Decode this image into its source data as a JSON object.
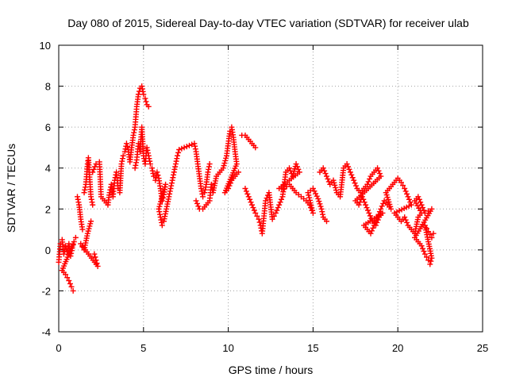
{
  "chart_data": {
    "type": "scatter",
    "title": "Day 080 of 2015, Sidereal Day-to-day VTEC variation (SDTVAR) for receiver ulab",
    "xlabel": "GPS time / hours",
    "ylabel": "SDTVAR / TECUs",
    "xlim": [
      0,
      25
    ],
    "ylim": [
      -4,
      10
    ],
    "xticks": [
      "0",
      "5",
      "10",
      "15",
      "20",
      "25"
    ],
    "yticks": [
      "-4",
      "-2",
      "0",
      "2",
      "4",
      "6",
      "8",
      "10"
    ],
    "grid": true,
    "marker": "+",
    "color": "#ff0000",
    "series": [
      {
        "name": "SDTVAR",
        "points": [
          [
            0.0,
            -0.6
          ],
          [
            0.1,
            0.3
          ],
          [
            0.2,
            0.5
          ],
          [
            0.3,
            -0.2
          ],
          [
            0.4,
            0.2
          ],
          [
            0.5,
            -0.1
          ],
          [
            0.6,
            0.3
          ],
          [
            0.7,
            -0.3
          ],
          [
            0.8,
            0.1
          ],
          [
            0.9,
            0.4
          ],
          [
            0.2,
            -1.0
          ],
          [
            0.4,
            -1.2
          ],
          [
            0.6,
            -1.5
          ],
          [
            0.75,
            -1.8
          ],
          [
            0.85,
            -2.0
          ],
          [
            1.0,
            0.6
          ],
          [
            1.1,
            2.6
          ],
          [
            1.2,
            2.2
          ],
          [
            1.3,
            1.5
          ],
          [
            1.4,
            1.0
          ],
          [
            1.5,
            2.8
          ],
          [
            1.6,
            3.2
          ],
          [
            1.7,
            4.2
          ],
          [
            1.75,
            4.5
          ],
          [
            1.8,
            3.8
          ],
          [
            1.9,
            2.6
          ],
          [
            2.0,
            2.2
          ],
          [
            2.1,
            -0.2
          ],
          [
            2.2,
            -0.5
          ],
          [
            2.3,
            -0.8
          ],
          [
            1.3,
            0.3
          ],
          [
            1.5,
            0.0
          ],
          [
            1.7,
            0.8
          ],
          [
            1.9,
            1.4
          ],
          [
            2.0,
            3.8
          ],
          [
            2.2,
            4.2
          ],
          [
            2.4,
            4.3
          ],
          [
            2.5,
            2.6
          ],
          [
            2.7,
            2.4
          ],
          [
            2.9,
            2.2
          ],
          [
            3.0,
            2.8
          ],
          [
            3.1,
            3.2
          ],
          [
            3.2,
            2.6
          ],
          [
            3.3,
            3.4
          ],
          [
            3.4,
            3.8
          ],
          [
            3.5,
            3.0
          ],
          [
            3.6,
            2.8
          ],
          [
            3.7,
            4.2
          ],
          [
            3.8,
            4.6
          ],
          [
            3.9,
            4.8
          ],
          [
            4.0,
            5.2
          ],
          [
            4.1,
            4.9
          ],
          [
            4.2,
            4.3
          ],
          [
            4.3,
            5.0
          ],
          [
            4.4,
            5.6
          ],
          [
            4.5,
            6.0
          ],
          [
            4.6,
            7.0
          ],
          [
            4.7,
            7.6
          ],
          [
            4.8,
            7.9
          ],
          [
            4.9,
            8.0
          ],
          [
            5.0,
            7.6
          ],
          [
            5.1,
            7.4
          ],
          [
            5.2,
            7.1
          ],
          [
            5.3,
            7.0
          ],
          [
            4.5,
            4.0
          ],
          [
            4.6,
            4.4
          ],
          [
            4.7,
            5.2
          ],
          [
            4.8,
            4.8
          ],
          [
            4.9,
            6.0
          ],
          [
            5.0,
            4.6
          ],
          [
            5.1,
            4.2
          ],
          [
            5.2,
            5.0
          ],
          [
            5.3,
            4.6
          ],
          [
            5.4,
            4.2
          ],
          [
            5.5,
            4.0
          ],
          [
            5.6,
            3.6
          ],
          [
            5.7,
            3.4
          ],
          [
            5.8,
            3.8
          ],
          [
            5.9,
            3.5
          ],
          [
            6.0,
            3.0
          ],
          [
            6.1,
            2.4
          ],
          [
            6.2,
            2.7
          ],
          [
            6.3,
            3.2
          ],
          [
            5.9,
            2.0
          ],
          [
            6.0,
            1.6
          ],
          [
            6.1,
            1.2
          ],
          [
            6.2,
            1.4
          ],
          [
            6.5,
            2.6
          ],
          [
            6.6,
            3.0
          ],
          [
            6.7,
            3.4
          ],
          [
            6.8,
            3.8
          ],
          [
            6.9,
            4.2
          ],
          [
            7.0,
            4.6
          ],
          [
            7.1,
            4.9
          ],
          [
            8.0,
            5.2
          ],
          [
            8.1,
            4.8
          ],
          [
            8.2,
            4.2
          ],
          [
            8.3,
            3.6
          ],
          [
            8.4,
            3.0
          ],
          [
            8.5,
            2.6
          ],
          [
            8.6,
            2.8
          ],
          [
            8.7,
            3.2
          ],
          [
            8.8,
            3.8
          ],
          [
            8.9,
            4.2
          ],
          [
            8.1,
            2.4
          ],
          [
            8.3,
            2.0
          ],
          [
            8.5,
            2.0
          ],
          [
            8.7,
            2.2
          ],
          [
            8.9,
            2.4
          ],
          [
            9.0,
            3.2
          ],
          [
            9.1,
            2.8
          ],
          [
            9.3,
            3.6
          ],
          [
            9.5,
            3.8
          ],
          [
            9.7,
            4.0
          ],
          [
            9.9,
            4.6
          ],
          [
            10.0,
            5.2
          ],
          [
            10.1,
            5.8
          ],
          [
            10.2,
            6.0
          ],
          [
            10.3,
            5.5
          ],
          [
            10.4,
            4.8
          ],
          [
            10.5,
            4.2
          ],
          [
            9.8,
            2.8
          ],
          [
            10.0,
            3.0
          ],
          [
            10.2,
            3.4
          ],
          [
            10.4,
            3.6
          ],
          [
            10.6,
            3.8
          ],
          [
            10.8,
            5.6
          ],
          [
            11.0,
            5.6
          ],
          [
            11.2,
            5.4
          ],
          [
            11.4,
            5.2
          ],
          [
            11.6,
            5.0
          ],
          [
            11.0,
            3.0
          ],
          [
            11.2,
            2.6
          ],
          [
            11.4,
            2.2
          ],
          [
            11.6,
            1.8
          ],
          [
            11.8,
            1.5
          ],
          [
            11.9,
            1.2
          ],
          [
            12.0,
            0.8
          ],
          [
            12.2,
            2.4
          ],
          [
            12.4,
            2.8
          ],
          [
            12.6,
            1.5
          ],
          [
            12.8,
            1.8
          ],
          [
            13.0,
            2.2
          ],
          [
            13.2,
            2.6
          ],
          [
            13.4,
            3.8
          ],
          [
            13.6,
            4.0
          ],
          [
            13.8,
            3.6
          ],
          [
            14.0,
            4.2
          ],
          [
            14.2,
            3.8
          ],
          [
            13.0,
            3.0
          ],
          [
            13.3,
            3.0
          ],
          [
            13.6,
            3.2
          ],
          [
            14.0,
            2.8
          ],
          [
            14.3,
            2.6
          ],
          [
            14.6,
            2.4
          ],
          [
            14.8,
            2.2
          ],
          [
            15.0,
            1.8
          ],
          [
            14.7,
            2.8
          ],
          [
            15.0,
            3.0
          ],
          [
            15.3,
            2.5
          ],
          [
            15.5,
            2.0
          ],
          [
            15.6,
            1.6
          ],
          [
            15.8,
            1.4
          ],
          [
            15.4,
            3.8
          ],
          [
            15.6,
            4.0
          ],
          [
            15.8,
            3.6
          ],
          [
            16.0,
            3.2
          ],
          [
            16.2,
            3.4
          ],
          [
            16.4,
            2.8
          ],
          [
            16.6,
            2.6
          ],
          [
            16.8,
            4.0
          ],
          [
            17.0,
            4.2
          ],
          [
            17.2,
            3.8
          ],
          [
            17.4,
            3.4
          ],
          [
            17.6,
            3.0
          ],
          [
            17.8,
            2.8
          ],
          [
            18.0,
            3.0
          ],
          [
            18.2,
            3.2
          ],
          [
            18.4,
            3.6
          ],
          [
            18.6,
            3.8
          ],
          [
            18.8,
            4.0
          ],
          [
            19.0,
            3.6
          ],
          [
            17.5,
            2.4
          ],
          [
            17.7,
            2.2
          ],
          [
            17.9,
            2.6
          ],
          [
            18.1,
            2.2
          ],
          [
            18.3,
            1.8
          ],
          [
            18.5,
            1.4
          ],
          [
            18.7,
            1.2
          ],
          [
            18.9,
            1.6
          ],
          [
            19.1,
            1.8
          ],
          [
            18.0,
            1.2
          ],
          [
            18.2,
            1.0
          ],
          [
            18.4,
            0.8
          ],
          [
            18.6,
            1.2
          ],
          [
            18.8,
            1.6
          ],
          [
            19.0,
            2.0
          ],
          [
            19.2,
            2.4
          ],
          [
            19.4,
            2.2
          ],
          [
            19.6,
            2.0
          ],
          [
            19.3,
            2.8
          ],
          [
            19.5,
            3.0
          ],
          [
            19.7,
            3.2
          ],
          [
            19.9,
            3.4
          ],
          [
            20.0,
            3.5
          ],
          [
            20.2,
            3.3
          ],
          [
            20.4,
            3.0
          ],
          [
            20.6,
            2.6
          ],
          [
            20.8,
            2.2
          ],
          [
            19.8,
            1.8
          ],
          [
            20.0,
            1.6
          ],
          [
            20.2,
            1.4
          ],
          [
            20.4,
            1.6
          ],
          [
            20.6,
            1.2
          ],
          [
            20.8,
            1.0
          ],
          [
            21.0,
            0.8
          ],
          [
            21.2,
            1.6
          ],
          [
            21.4,
            1.8
          ],
          [
            21.0,
            2.4
          ],
          [
            21.2,
            2.6
          ],
          [
            21.4,
            2.2
          ],
          [
            21.6,
            1.8
          ],
          [
            21.8,
            1.9
          ],
          [
            22.0,
            2.0
          ],
          [
            21.0,
            0.6
          ],
          [
            21.2,
            0.4
          ],
          [
            21.4,
            0.2
          ],
          [
            21.6,
            -0.2
          ],
          [
            21.8,
            -0.5
          ],
          [
            21.9,
            -0.7
          ],
          [
            22.0,
            -0.4
          ],
          [
            21.6,
            1.2
          ],
          [
            21.8,
            0.9
          ],
          [
            22.0,
            0.6
          ],
          [
            22.1,
            0.8
          ]
        ]
      }
    ]
  }
}
